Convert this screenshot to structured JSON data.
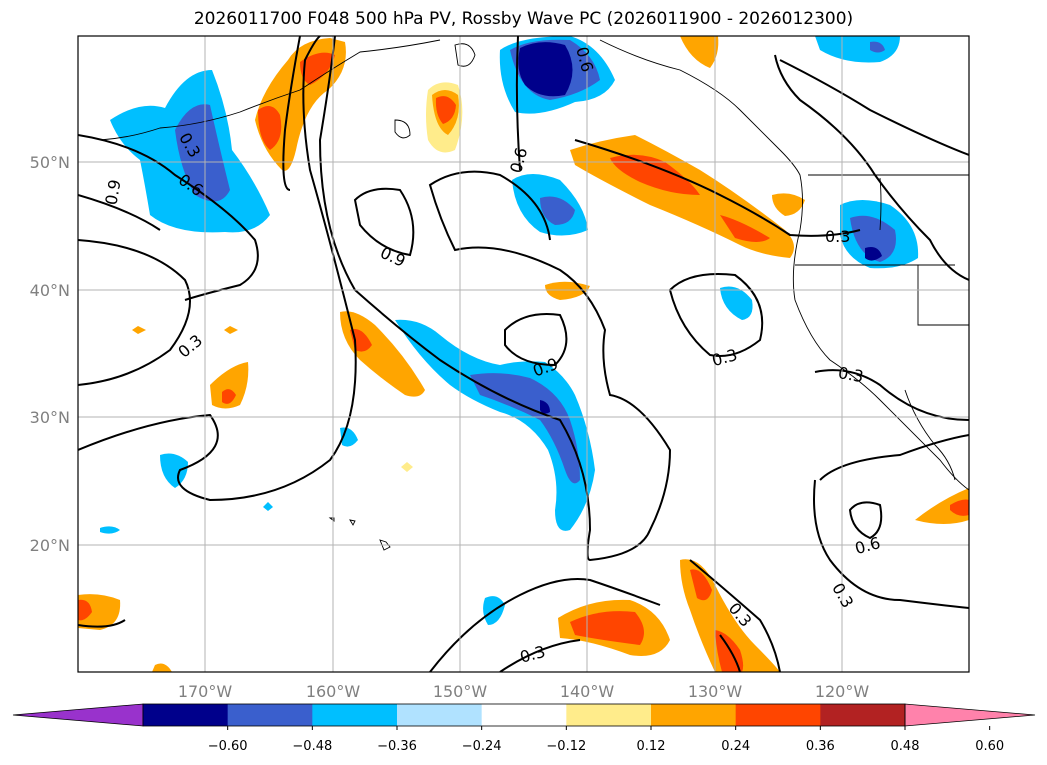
{
  "title": "2026011700 F048 500 hPa PV, Rossby Wave PC (2026011900 - 2026012300)",
  "map": {
    "lon_range": [
      -180,
      -110
    ],
    "lat_range": [
      10,
      60
    ],
    "lon_ticks": [
      "170°W",
      "160°W",
      "150°W",
      "140°W",
      "130°W",
      "120°W"
    ],
    "lat_ticks": [
      "50°N",
      "40°N",
      "30°N",
      "20°N"
    ],
    "grid": true,
    "contour_labels": [
      "0.3",
      "0.6",
      "0.9",
      "0.6",
      "0.9",
      "0.6",
      "0.3",
      "0.9",
      "0.3",
      "0.3",
      "0.3",
      "0.6",
      "0.3",
      "0.3",
      "0.3"
    ]
  },
  "colorbar": {
    "extend": "both",
    "colors": [
      "#9932cc",
      "#00008b",
      "#3a5fcd",
      "#00bfff",
      "#b0e2ff",
      "#ffffff",
      "#ffec8b",
      "#ffa500",
      "#ff4500",
      "#b22222",
      "#ff82ab"
    ],
    "tick_labels": [
      "−0.60",
      "−0.48",
      "−0.36",
      "−0.24",
      "−0.12",
      "0.12",
      "0.24",
      "0.36",
      "0.48",
      "0.60"
    ]
  }
}
